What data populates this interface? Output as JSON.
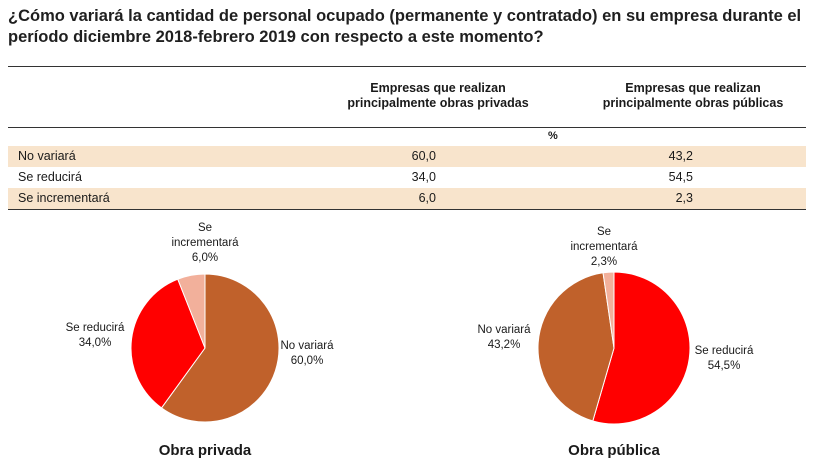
{
  "title": "¿Cómo variará la cantidad de personal ocupado (permanente y contratado) en su empresa durante el período diciembre 2018-febrero 2019 con respecto a este momento?",
  "colors": {
    "no_variara": "#c0612b",
    "se_reducira": "#ff0000",
    "se_incrementara": "#f2b09b",
    "row_shade": "#f8e4cc"
  },
  "table": {
    "col1_header": "Empresas que realizan principalmente obras privadas",
    "col2_header": "Empresas que realizan principalmente obras públicas",
    "unit": "%",
    "rows": [
      {
        "label": "No variará",
        "privadas": "60,0",
        "publicas": "43,2"
      },
      {
        "label": "Se reducirá",
        "privadas": "34,0",
        "publicas": "54,5"
      },
      {
        "label": "Se incrementará",
        "privadas": "6,0",
        "publicas": "2,3"
      }
    ]
  },
  "chart_data": [
    {
      "type": "pie",
      "title": "Obra privada",
      "slices": [
        {
          "label": "No variará",
          "value": 60.0,
          "display": "60,0%",
          "color": "#c0612b"
        },
        {
          "label": "Se reducirá",
          "value": 34.0,
          "display": "34,0%",
          "color": "#ff0000"
        },
        {
          "label": "Se incrementará",
          "value": 6.0,
          "display": "6,0%",
          "color": "#f2b09b"
        }
      ]
    },
    {
      "type": "pie",
      "title": "Obra pública",
      "slices": [
        {
          "label": "Se reducirá",
          "value": 54.5,
          "display": "54,5%",
          "color": "#ff0000"
        },
        {
          "label": "No variará",
          "value": 43.2,
          "display": "43,2%",
          "color": "#c0612b"
        },
        {
          "label": "Se incrementará",
          "value": 2.3,
          "display": "2,3%",
          "color": "#f2b09b"
        }
      ]
    }
  ]
}
